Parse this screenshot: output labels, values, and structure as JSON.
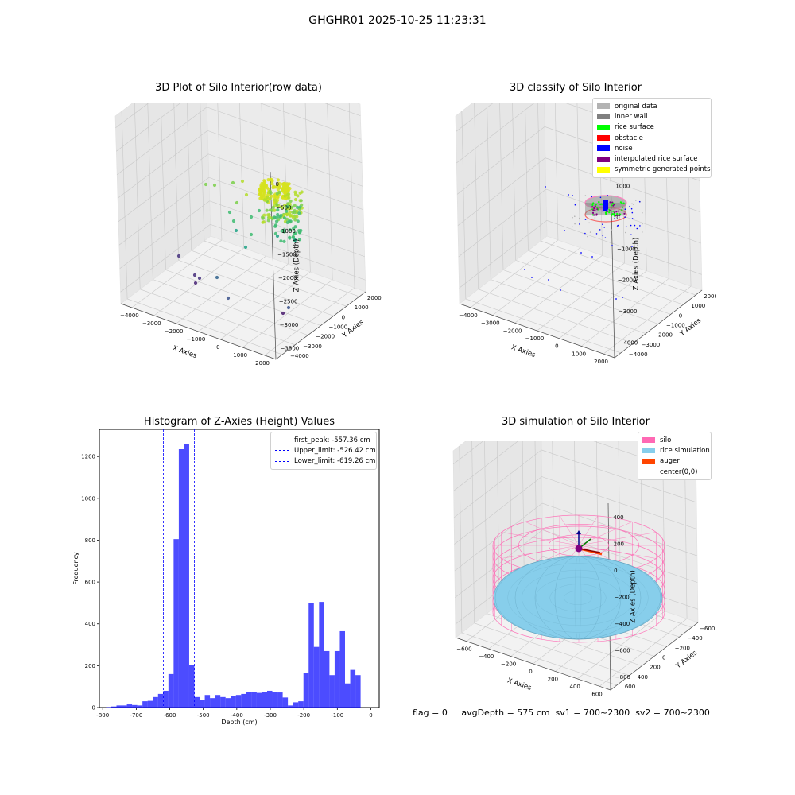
{
  "figure": {
    "suptitle": "GHGHR01 2025-10-25 11:23:31",
    "footer": "flag = 0     avgDepth = 575 cm  sv1 = 700~2300  sv2 = 700~2300"
  },
  "chart_data": [
    {
      "type": "scatter",
      "projection": "3d",
      "title": "3D Plot of Silo Interior(row data)",
      "xlabel": "X Axies",
      "ylabel": "Y Axies",
      "zlabel": "Z Axies (Depth)",
      "xticks": [
        "−4000",
        "−3000",
        "−2000",
        "−1000",
        "0",
        "1000",
        "2000"
      ],
      "yticks": [
        "−4000",
        "−3000",
        "−2000",
        "−1000",
        "0",
        "1000",
        "2000"
      ],
      "zticks": [
        "0",
        "−500",
        "−1000",
        "−1500",
        "−2000",
        "−2500",
        "−3000",
        "−3500"
      ],
      "colormap": "viridis"
    },
    {
      "type": "scatter",
      "projection": "3d",
      "title": "3D classify of Silo Interior",
      "xlabel": "X Axies",
      "ylabel": "Y Axies",
      "zlabel": "Z Axies (Depth)",
      "xticks": [
        "−4000",
        "−3000",
        "−2000",
        "−1000",
        "0",
        "1000",
        "2000"
      ],
      "yticks": [
        "−4000",
        "−3000",
        "−2000",
        "−1000",
        "0",
        "1000",
        "2000"
      ],
      "zticks": [
        "1000",
        "0",
        "−1000",
        "−2000",
        "−3000",
        "−4000"
      ],
      "legend": [
        {
          "label": "original data",
          "color": "#b3b3b3"
        },
        {
          "label": "inner wall",
          "color": "#808080"
        },
        {
          "label": "rice surface",
          "color": "#00ff00"
        },
        {
          "label": "obstacle",
          "color": "#ff0000"
        },
        {
          "label": "noise",
          "color": "#0000ff"
        },
        {
          "label": "interpolated rice surface",
          "color": "#800080"
        },
        {
          "label": "symmetric generated points",
          "color": "#ffff00"
        }
      ]
    },
    {
      "type": "bar",
      "title": "Histogram of Z-Axies (Height) Values",
      "xlabel": "Depth (cm)",
      "ylabel": "Frequency",
      "xlim": [
        -810,
        25
      ],
      "ylim": [
        0,
        1330
      ],
      "xticks": [
        -800,
        -700,
        -600,
        -500,
        -400,
        -300,
        -200,
        -100,
        0
      ],
      "yticks": [
        0,
        200,
        400,
        600,
        800,
        1000,
        1200
      ],
      "bar_color": "#0000ff",
      "bar_opacity": 0.7,
      "bin_width": 15.5,
      "bin_start": -790,
      "values": [
        2,
        5,
        10,
        10,
        15,
        12,
        10,
        30,
        32,
        50,
        65,
        80,
        160,
        805,
        1235,
        1260,
        205,
        50,
        35,
        60,
        45,
        60,
        50,
        45,
        55,
        60,
        65,
        75,
        75,
        70,
        75,
        80,
        75,
        72,
        48,
        10,
        25,
        30,
        165,
        500,
        290,
        505,
        270,
        155,
        270,
        365,
        115,
        180,
        155
      ],
      "vlines": [
        {
          "x": -557.36,
          "color": "#ff0000",
          "label": "first_peak: -557.36 cm"
        },
        {
          "x": -526.42,
          "color": "#0000ff",
          "label": "Upper_limit: -526.42 cm"
        },
        {
          "x": -619.26,
          "color": "#0000ff",
          "label": "Lower_limit: -619.26 cm"
        }
      ]
    },
    {
      "type": "surface",
      "projection": "3d",
      "title": "3D simulation of Silo Interior",
      "xlabel": "X Axies",
      "ylabel": "Y Axies",
      "zlabel": "Z Axies (Depth)",
      "xticks": [
        "−600",
        "−400",
        "−200",
        "0",
        "200",
        "400",
        "600"
      ],
      "yticks": [
        "600",
        "400",
        "200",
        "0",
        "−200",
        "−400",
        "−600"
      ],
      "zticks": [
        "400",
        "200",
        "0",
        "−200",
        "−400",
        "−600",
        "−800"
      ],
      "legend": [
        {
          "label": "silo",
          "color": "#ff69b4"
        },
        {
          "label": "rice simulation",
          "color": "#87ceeb"
        },
        {
          "label": "auger",
          "color": "#ff4500"
        },
        {
          "label": "center(0,0)",
          "color": ""
        }
      ]
    }
  ]
}
